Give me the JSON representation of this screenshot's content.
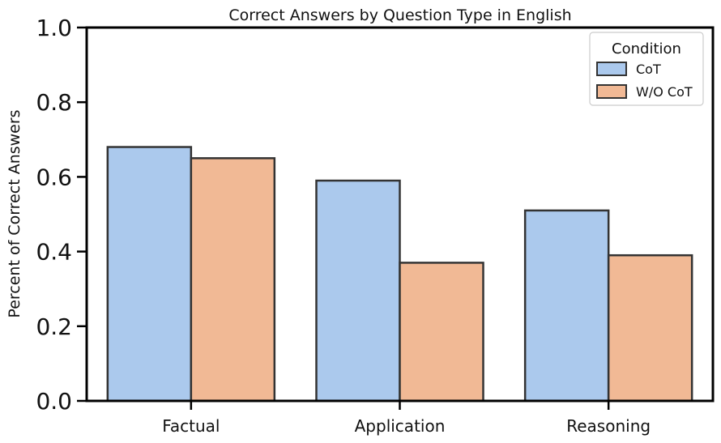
{
  "chart_data": {
    "type": "bar",
    "title": "Correct Answers by Question Type in English",
    "xlabel": "",
    "ylabel": "Percent of Correct Answers",
    "categories": [
      "Factual",
      "Application",
      "Reasoning"
    ],
    "series": [
      {
        "name": "CoT",
        "values": [
          0.68,
          0.59,
          0.51
        ],
        "color": "#abc9ed"
      },
      {
        "name": "W/O CoT",
        "values": [
          0.65,
          0.37,
          0.39
        ],
        "color": "#f1b995"
      }
    ],
    "ylim": [
      0,
      1.0
    ],
    "yticks": [
      "0.0",
      "0.2",
      "0.4",
      "0.6",
      "0.8",
      "1.0"
    ],
    "grid": false,
    "legend": {
      "title": "Condition",
      "placement": "top-right"
    },
    "edge_color": "#333333"
  }
}
